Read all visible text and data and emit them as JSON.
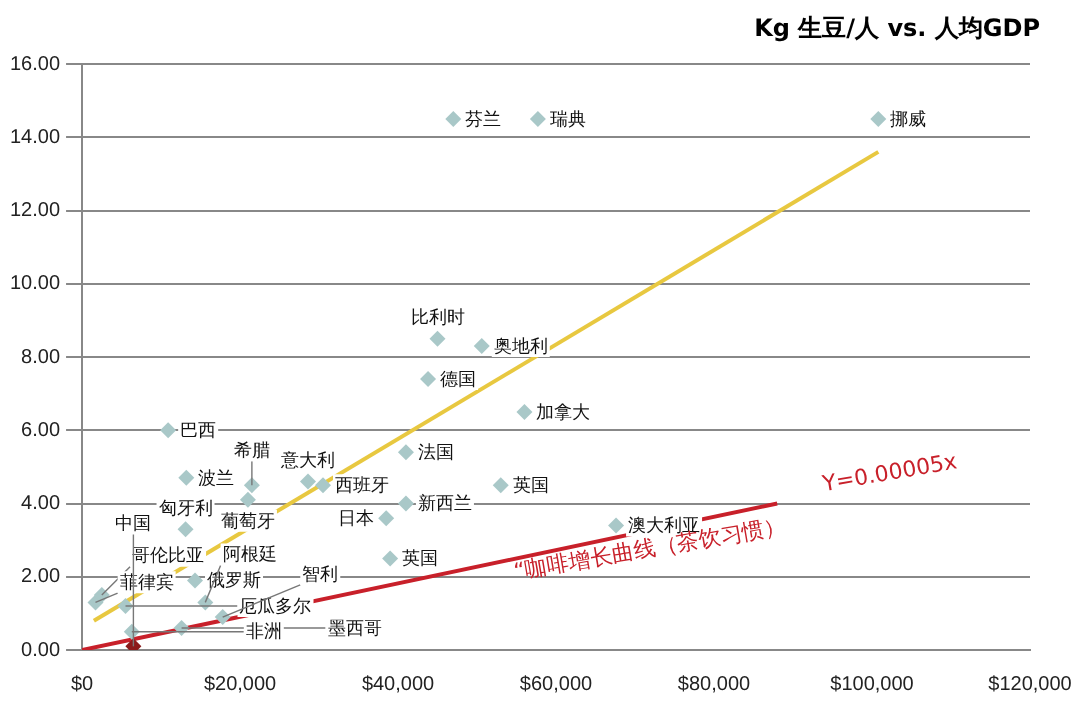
{
  "chart_data": {
    "type": "scatter",
    "title": "Kg 生豆/人 vs. 人均GDP",
    "xlim": [
      0,
      120000
    ],
    "xticks": [
      {
        "value": 0,
        "label": "$0"
      },
      {
        "value": 20000,
        "label": "$20,000"
      },
      {
        "value": 40000,
        "label": "$40,000"
      },
      {
        "value": 60000,
        "label": "$60,000"
      },
      {
        "value": 80000,
        "label": "$80,000"
      },
      {
        "value": 100000,
        "label": "$100,000"
      },
      {
        "value": 120000,
        "label": "$120,000"
      }
    ],
    "ylim": [
      0,
      16
    ],
    "yticks": [
      {
        "value": 0,
        "label": "0.00"
      },
      {
        "value": 2,
        "label": "2.00"
      },
      {
        "value": 4,
        "label": "4.00"
      },
      {
        "value": 6,
        "label": "6.00"
      },
      {
        "value": 8,
        "label": "8.00"
      },
      {
        "value": 10,
        "label": "10.00"
      },
      {
        "value": 12,
        "label": "12.00"
      },
      {
        "value": 14,
        "label": "14.00"
      },
      {
        "value": 16,
        "label": "16.00"
      }
    ],
    "grid": "y",
    "legend": false,
    "marker": "diamond",
    "series": [
      {
        "name": "芬兰",
        "color": "#a9c8c8",
        "x": [
          47000
        ],
        "values": [
          14.5
        ]
      },
      {
        "name": "瑞典",
        "color": "#a9c8c8",
        "x": [
          57700
        ],
        "values": [
          14.5
        ]
      },
      {
        "name": "挪威",
        "color": "#a9c8c8",
        "x": [
          100800
        ],
        "values": [
          14.5
        ]
      },
      {
        "name": "比利时",
        "color": "#a9c8c8",
        "x": [
          45000
        ],
        "values": [
          8.5
        ]
      },
      {
        "name": "奥地利",
        "color": "#a9c8c8",
        "x": [
          50600
        ],
        "values": [
          8.3
        ]
      },
      {
        "name": "德国",
        "color": "#a9c8c8",
        "x": [
          43800
        ],
        "values": [
          7.4
        ]
      },
      {
        "name": "加拿大",
        "color": "#a9c8c8",
        "x": [
          56000
        ],
        "values": [
          6.5
        ]
      },
      {
        "name": "巴西",
        "color": "#a9c8c8",
        "x": [
          10900
        ],
        "values": [
          6.0
        ]
      },
      {
        "name": "波兰",
        "color": "#a9c8c8",
        "x": [
          13200
        ],
        "values": [
          4.7
        ]
      },
      {
        "name": "希腊",
        "color": "#a9c8c8",
        "x": [
          21500
        ],
        "values": [
          4.5
        ]
      },
      {
        "name": "意大利",
        "color": "#a9c8c8",
        "x": [
          28600
        ],
        "values": [
          4.6
        ]
      },
      {
        "name": "法国",
        "color": "#a9c8c8",
        "x": [
          41000
        ],
        "values": [
          5.4
        ]
      },
      {
        "name": "西班牙",
        "color": "#a9c8c8",
        "x": [
          30500
        ],
        "values": [
          4.5
        ]
      },
      {
        "name": "英国",
        "color": "#a9c8c8",
        "x": [
          53000
        ],
        "values": [
          4.5
        ]
      },
      {
        "name": "葡萄牙",
        "color": "#a9c8c8",
        "x": [
          21000
        ],
        "values": [
          4.1
        ]
      },
      {
        "name": "新西兰",
        "color": "#a9c8c8",
        "x": [
          41000
        ],
        "values": [
          4.0
        ]
      },
      {
        "name": "日本",
        "color": "#a9c8c8",
        "x": [
          38500
        ],
        "values": [
          3.6
        ]
      },
      {
        "name": "匈牙利",
        "color": "#a9c8c8",
        "x": [
          13100
        ],
        "values": [
          3.3
        ]
      },
      {
        "name": "澳大利亚",
        "color": "#a9c8c8",
        "x": [
          67600
        ],
        "values": [
          3.4
        ]
      },
      {
        "name": "英国",
        "color": "#a9c8c8",
        "x": [
          39000
        ],
        "values": [
          2.5
        ]
      },
      {
        "name": "哥伦比亚",
        "color": "#a9c8c8",
        "x": [
          2500
        ],
        "values": [
          1.5
        ]
      },
      {
        "name": "菲律宾",
        "color": "#a9c8c8",
        "x": [
          1700
        ],
        "values": [
          1.3
        ]
      },
      {
        "name": "俄罗斯",
        "color": "#a9c8c8",
        "x": [
          14300
        ],
        "values": [
          1.9
        ]
      },
      {
        "name": "厄瓜多尔",
        "color": "#a9c8c8",
        "x": [
          5500
        ],
        "values": [
          1.2
        ]
      },
      {
        "name": "阿根廷",
        "color": "#a9c8c8",
        "x": [
          15600
        ],
        "values": [
          1.3
        ]
      },
      {
        "name": "智利",
        "color": "#a9c8c8",
        "x": [
          17800
        ],
        "values": [
          0.9
        ]
      },
      {
        "name": "墨西哥",
        "color": "#a9c8c8",
        "x": [
          12600
        ],
        "values": [
          0.6
        ]
      },
      {
        "name": "非洲",
        "color": "#a9c8c8",
        "x": [
          6300
        ],
        "values": [
          0.5
        ]
      },
      {
        "name": "中国",
        "color": "#8b1a1a",
        "x": [
          6500
        ],
        "values": [
          0.1
        ]
      },
      {
        "type": "line",
        "marker": "none",
        "color": "#e8c840",
        "x": [
          1500,
          100800
        ],
        "values": [
          0.8,
          13.6
        ]
      },
      {
        "type": "line",
        "marker": "none",
        "color": "#c8202a",
        "x": [
          0,
          88000
        ],
        "values": [
          0,
          4.0
        ]
      }
    ],
    "annotations": [
      "“咖啡增长曲线（茶饮习惯）",
      "Y=0.00005x"
    ]
  }
}
